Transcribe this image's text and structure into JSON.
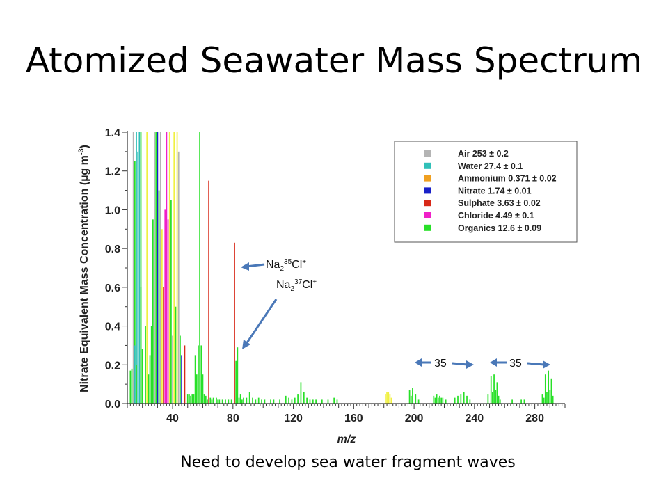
{
  "slide": {
    "title": "Atomized Seawater Mass Spectrum",
    "caption": "Need to develop sea water fragment waves"
  },
  "chart_data": {
    "type": "bar",
    "xlabel": "m/z",
    "ylabel": "Nitrate Equivalent Mass Concentration (µg m",
    "ylabel_sup": "-3",
    "ylabel_close": ")",
    "xlim": [
      10,
      300
    ],
    "ylim": [
      0,
      1.4
    ],
    "xticks": [
      40,
      80,
      120,
      160,
      200,
      240,
      280
    ],
    "yticks": [
      "0.0",
      "0.2",
      "0.4",
      "0.6",
      "0.8",
      "1.0",
      "1.2",
      "1.4"
    ],
    "legend_position": "top-right",
    "series": [
      {
        "name": "Air 253 ± 0.2",
        "color": "#b4b4b4"
      },
      {
        "name": "Water 27.4 ± 0.1",
        "color": "#30c0b8"
      },
      {
        "name": "Ammonium 0.371 ± 0.02",
        "color": "#f0a020"
      },
      {
        "name": "Nitrate 1.74 ± 0.01",
        "color": "#1820c8"
      },
      {
        "name": "Sulphate 3.63 ± 0.02",
        "color": "#d82818"
      },
      {
        "name": "Chloride 4.49 ± 0.1",
        "color": "#f020c8"
      },
      {
        "name": "Organics 12.6 ± 0.09",
        "color": "#28e028"
      }
    ],
    "extra_color": "#f0f040",
    "bars": [
      [
        12,
        0.17,
        "Organics"
      ],
      [
        13,
        0.18,
        "Organics"
      ],
      [
        14,
        1.4,
        "Air"
      ],
      [
        15,
        1.25,
        "Organics"
      ],
      [
        15,
        0.3,
        "Water"
      ],
      [
        16,
        1.4,
        "Water"
      ],
      [
        16,
        0.2,
        "Organics"
      ],
      [
        17,
        1.3,
        "Water"
      ],
      [
        18,
        1.4,
        "Water"
      ],
      [
        19,
        0.6,
        "Organics"
      ],
      [
        19,
        1.4,
        "Organics"
      ],
      [
        20,
        0.28,
        "Organics"
      ],
      [
        22,
        0.4,
        "Organics"
      ],
      [
        23,
        1.4,
        "extra"
      ],
      [
        24,
        0.15,
        "Organics"
      ],
      [
        25,
        0.25,
        "Organics"
      ],
      [
        26,
        0.4,
        "Organics"
      ],
      [
        27,
        0.95,
        "Organics"
      ],
      [
        28,
        1.4,
        "Air"
      ],
      [
        29,
        1.4,
        "Organics"
      ],
      [
        30,
        1.4,
        "Nitrate"
      ],
      [
        31,
        1.1,
        "Organics"
      ],
      [
        32,
        1.4,
        "Air"
      ],
      [
        33,
        0.9,
        "extra"
      ],
      [
        34,
        0.6,
        "Sulphate"
      ],
      [
        35,
        1.0,
        "Chloride"
      ],
      [
        36,
        1.4,
        "Chloride"
      ],
      [
        37,
        0.95,
        "Chloride"
      ],
      [
        38,
        1.4,
        "extra"
      ],
      [
        39,
        1.05,
        "Organics"
      ],
      [
        40,
        0.35,
        "Air"
      ],
      [
        41,
        1.4,
        "extra"
      ],
      [
        42,
        0.5,
        "Organics"
      ],
      [
        43,
        1.4,
        "extra"
      ],
      [
        44,
        1.3,
        "Air"
      ],
      [
        45,
        0.35,
        "Organics"
      ],
      [
        46,
        0.25,
        "Nitrate"
      ],
      [
        48,
        0.3,
        "Sulphate"
      ],
      [
        50,
        0.05,
        "Organics"
      ],
      [
        51,
        0.05,
        "Organics"
      ],
      [
        52,
        0.04,
        "Organics"
      ],
      [
        53,
        0.05,
        "Organics"
      ],
      [
        54,
        0.05,
        "Organics"
      ],
      [
        55,
        0.25,
        "Organics"
      ],
      [
        56,
        0.15,
        "Organics"
      ],
      [
        57,
        0.3,
        "Organics"
      ],
      [
        58,
        1.4,
        "Organics"
      ],
      [
        59,
        0.3,
        "Organics"
      ],
      [
        60,
        0.15,
        "Organics"
      ],
      [
        61,
        0.05,
        "Organics"
      ],
      [
        62,
        0.04,
        "Organics"
      ],
      [
        63,
        0.02,
        "Organics"
      ],
      [
        64,
        1.15,
        "Sulphate"
      ],
      [
        65,
        0.03,
        "Organics"
      ],
      [
        66,
        0.02,
        "Organics"
      ],
      [
        67,
        0.03,
        "Organics"
      ],
      [
        69,
        0.03,
        "Organics"
      ],
      [
        70,
        0.02,
        "Organics"
      ],
      [
        71,
        0.02,
        "Organics"
      ],
      [
        73,
        0.02,
        "Organics"
      ],
      [
        75,
        0.02,
        "Organics"
      ],
      [
        77,
        0.02,
        "Organics"
      ],
      [
        79,
        0.02,
        "Organics"
      ],
      [
        81,
        0.83,
        "Sulphate"
      ],
      [
        82,
        0.22,
        "Organics"
      ],
      [
        83,
        0.29,
        "Organics"
      ],
      [
        84,
        0.03,
        "Organics"
      ],
      [
        85,
        0.05,
        "Organics"
      ],
      [
        86,
        0.02,
        "Organics"
      ],
      [
        87,
        0.03,
        "Organics"
      ],
      [
        89,
        0.03,
        "Organics"
      ],
      [
        91,
        0.06,
        "Organics"
      ],
      [
        93,
        0.03,
        "Organics"
      ],
      [
        95,
        0.02,
        "Organics"
      ],
      [
        97,
        0.03,
        "Organics"
      ],
      [
        99,
        0.02,
        "Organics"
      ],
      [
        101,
        0.02,
        "Organics"
      ],
      [
        105,
        0.02,
        "Organics"
      ],
      [
        107,
        0.02,
        "Organics"
      ],
      [
        111,
        0.02,
        "Organics"
      ],
      [
        115,
        0.04,
        "Organics"
      ],
      [
        117,
        0.03,
        "Organics"
      ],
      [
        119,
        0.02,
        "Organics"
      ],
      [
        121,
        0.03,
        "Organics"
      ],
      [
        123,
        0.05,
        "Organics"
      ],
      [
        125,
        0.11,
        "Organics"
      ],
      [
        127,
        0.06,
        "Organics"
      ],
      [
        129,
        0.03,
        "Organics"
      ],
      [
        131,
        0.02,
        "Organics"
      ],
      [
        133,
        0.02,
        "Organics"
      ],
      [
        135,
        0.02,
        "Organics"
      ],
      [
        139,
        0.02,
        "Organics"
      ],
      [
        143,
        0.02,
        "Organics"
      ],
      [
        147,
        0.03,
        "Organics"
      ],
      [
        149,
        0.02,
        "Organics"
      ],
      [
        181,
        0.05,
        "extra"
      ],
      [
        182,
        0.06,
        "extra"
      ],
      [
        183,
        0.06,
        "extra"
      ],
      [
        184,
        0.05,
        "extra"
      ],
      [
        185,
        0.03,
        "extra"
      ],
      [
        197,
        0.07,
        "Organics"
      ],
      [
        198,
        0.04,
        "Organics"
      ],
      [
        199,
        0.08,
        "Organics"
      ],
      [
        201,
        0.05,
        "Organics"
      ],
      [
        203,
        0.02,
        "Organics"
      ],
      [
        213,
        0.04,
        "Organics"
      ],
      [
        214,
        0.03,
        "Organics"
      ],
      [
        215,
        0.05,
        "Organics"
      ],
      [
        216,
        0.03,
        "Organics"
      ],
      [
        217,
        0.04,
        "Organics"
      ],
      [
        218,
        0.03,
        "Organics"
      ],
      [
        219,
        0.03,
        "Organics"
      ],
      [
        221,
        0.02,
        "Organics"
      ],
      [
        227,
        0.03,
        "Organics"
      ],
      [
        229,
        0.04,
        "Organics"
      ],
      [
        231,
        0.05,
        "Organics"
      ],
      [
        233,
        0.06,
        "Organics"
      ],
      [
        235,
        0.04,
        "Organics"
      ],
      [
        237,
        0.02,
        "Organics"
      ],
      [
        249,
        0.05,
        "Organics"
      ],
      [
        251,
        0.14,
        "Organics"
      ],
      [
        252,
        0.06,
        "Organics"
      ],
      [
        253,
        0.15,
        "Organics"
      ],
      [
        254,
        0.07,
        "Organics"
      ],
      [
        255,
        0.11,
        "Organics"
      ],
      [
        256,
        0.04,
        "Organics"
      ],
      [
        257,
        0.02,
        "Organics"
      ],
      [
        265,
        0.02,
        "Organics"
      ],
      [
        271,
        0.02,
        "Organics"
      ],
      [
        273,
        0.02,
        "Organics"
      ],
      [
        285,
        0.05,
        "Organics"
      ],
      [
        286,
        0.03,
        "Organics"
      ],
      [
        287,
        0.15,
        "Organics"
      ],
      [
        288,
        0.06,
        "Organics"
      ],
      [
        289,
        0.17,
        "Organics"
      ],
      [
        290,
        0.07,
        "Organics"
      ],
      [
        291,
        0.13,
        "Organics"
      ],
      [
        292,
        0.04,
        "Organics"
      ]
    ],
    "annotations": [
      {
        "base": "Na",
        "sub": "2",
        "sup": "35",
        "tail": "Cl",
        "charge": "+"
      },
      {
        "base": "Na",
        "sub": "2",
        "sup": "37",
        "tail": "Cl",
        "charge": "+"
      },
      {
        "text": "35"
      },
      {
        "text": "35"
      }
    ]
  }
}
